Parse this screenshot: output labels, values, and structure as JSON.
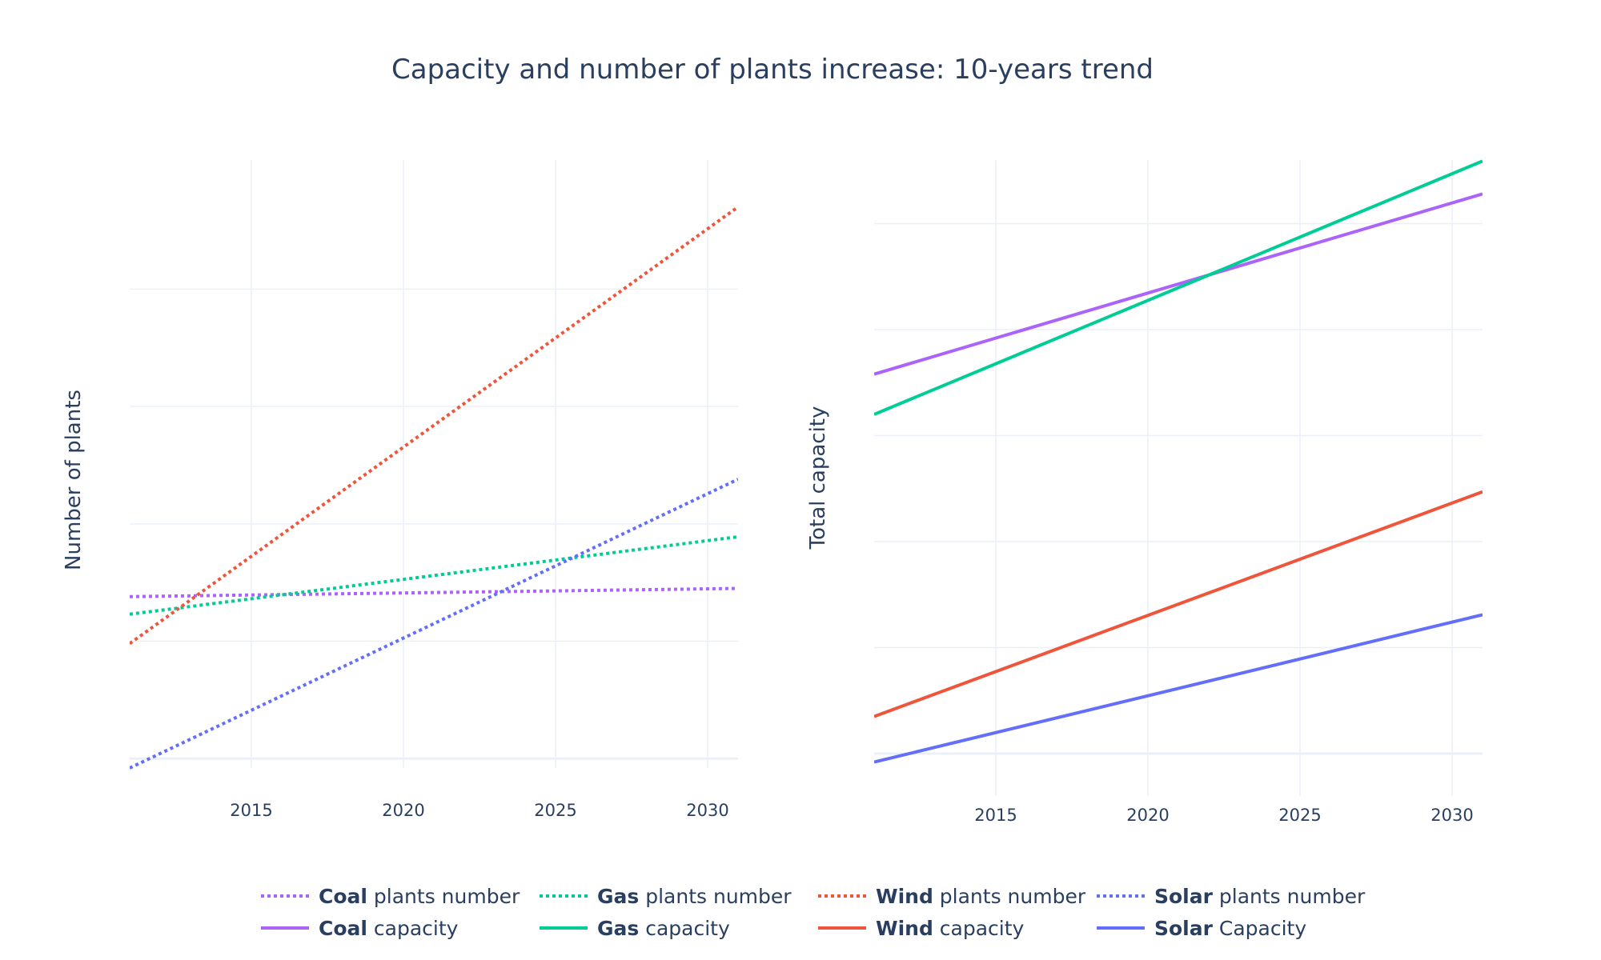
{
  "title": "Capacity and number of plants increase: 10-years trend",
  "chart_data": [
    {
      "type": "line",
      "ylabel": "Number of plants",
      "xlabel": "",
      "xlim": [
        2011,
        2031
      ],
      "ylim": [
        -8,
        510
      ],
      "x_ticks": [
        2015,
        2020,
        2025,
        2030
      ],
      "x_tick_labels": [
        "2015",
        "2020",
        "2025",
        "2030"
      ],
      "y_gridlines": [
        0,
        100,
        200,
        300,
        400
      ],
      "y_tick_labels_visible": false,
      "grid": true,
      "series": [
        {
          "name_bold": "Coal",
          "name_rest": " plants number",
          "color": "#ab63fa",
          "dash": "dot",
          "x": [
            2011,
            2031
          ],
          "y": [
            138,
            145
          ]
        },
        {
          "name_bold": "Gas",
          "name_rest": " plants number",
          "color": "#00cc96",
          "dash": "dot",
          "x": [
            2011,
            2031
          ],
          "y": [
            123,
            189
          ]
        },
        {
          "name_bold": "Wind",
          "name_rest": " plants number",
          "color": "#ef553b",
          "dash": "dot",
          "x": [
            2011,
            2031
          ],
          "y": [
            98,
            470
          ]
        },
        {
          "name_bold": "Solar",
          "name_rest": " plants number",
          "color": "#636efa",
          "dash": "dot",
          "x": [
            2011,
            2031
          ],
          "y": [
            -8,
            238
          ]
        }
      ]
    },
    {
      "type": "line",
      "ylabel": "Total capacity",
      "xlabel": "",
      "xlim": [
        2011,
        2031
      ],
      "ylim": [
        -40,
        560
      ],
      "x_ticks": [
        2015,
        2020,
        2025,
        2030
      ],
      "x_tick_labels": [
        "2015",
        "2020",
        "2025",
        "2030"
      ],
      "y_gridlines": [
        0,
        100,
        200,
        300,
        400,
        500
      ],
      "y_tick_labels_visible": false,
      "grid": true,
      "series": [
        {
          "name_bold": "Coal",
          "name_rest": " capacity",
          "color": "#ab63fa",
          "dash": "solid",
          "x": [
            2011,
            2031
          ],
          "y": [
            358,
            528
          ]
        },
        {
          "name_bold": "Gas",
          "name_rest": " capacity",
          "color": "#00cc96",
          "dash": "solid",
          "x": [
            2011,
            2031
          ],
          "y": [
            320,
            559
          ]
        },
        {
          "name_bold": "Wind",
          "name_rest": " capacity",
          "color": "#ef553b",
          "dash": "solid",
          "x": [
            2011,
            2031
          ],
          "y": [
            35,
            247
          ]
        },
        {
          "name_bold": "Solar",
          "name_rest": " Capacity",
          "color": "#636efa",
          "dash": "solid",
          "x": [
            2011,
            2031
          ],
          "y": [
            -8,
            131
          ]
        }
      ]
    }
  ],
  "legend": {
    "placement": "bottom-center",
    "items": [
      {
        "bold": "Coal",
        "rest": " plants number",
        "color": "#ab63fa",
        "dash": "dot"
      },
      {
        "bold": "Gas",
        "rest": " plants number",
        "color": "#00cc96",
        "dash": "dot"
      },
      {
        "bold": "Wind",
        "rest": " plants number",
        "color": "#ef553b",
        "dash": "dot"
      },
      {
        "bold": "Solar",
        "rest": " plants number",
        "color": "#636efa",
        "dash": "dot"
      },
      {
        "bold": "Coal",
        "rest": " capacity",
        "color": "#ab63fa",
        "dash": "solid"
      },
      {
        "bold": "Gas",
        "rest": " capacity",
        "color": "#00cc96",
        "dash": "solid"
      },
      {
        "bold": "Wind",
        "rest": " capacity",
        "color": "#ef553b",
        "dash": "solid"
      },
      {
        "bold": "Solar",
        "rest": " Capacity",
        "color": "#636efa",
        "dash": "solid"
      }
    ]
  },
  "colors": {
    "grid": "#ebf0f8",
    "text": "#2a3f5f",
    "background": "#ffffff"
  }
}
